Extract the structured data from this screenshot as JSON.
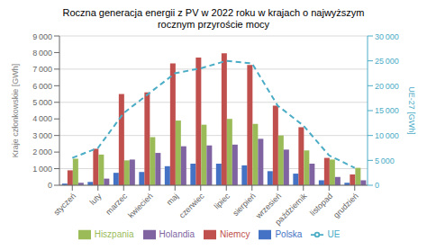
{
  "chart_data": {
    "type": "bar",
    "title": "Roczna generacja energii z PV w 2022 roku w krajach o najwyższym\nrocznym przyroście mocy",
    "categories": [
      "styczeń",
      "luty",
      "marzec",
      "kwiecień",
      "maj",
      "czerwiec",
      "lipiec",
      "sierpień",
      "wrzesień",
      "październik",
      "listopad",
      "grudzień"
    ],
    "series": [
      {
        "name": "Polska",
        "color": "#4472c4",
        "values": [
          100,
          200,
          750,
          800,
          1150,
          1300,
          1300,
          1200,
          850,
          700,
          300,
          150
        ]
      },
      {
        "name": "Niemcy",
        "color": "#c0504d",
        "values": [
          900,
          2200,
          5500,
          5600,
          7350,
          7700,
          7950,
          7250,
          4800,
          3500,
          1650,
          650
        ]
      },
      {
        "name": "Hiszpania",
        "color": "#9bbb59",
        "values": [
          1600,
          1850,
          1500,
          2900,
          3900,
          3650,
          4000,
          3700,
          3000,
          2100,
          1550,
          1050
        ]
      },
      {
        "name": "Holandia",
        "color": "#8064a2",
        "values": [
          150,
          400,
          1550,
          1950,
          2350,
          2400,
          2450,
          2800,
          2150,
          1300,
          500,
          300
        ]
      },
      {
        "name": "UE",
        "color": "#4bacc6",
        "values": [
          5500,
          7500,
          14500,
          18500,
          22500,
          23500,
          25000,
          24500,
          16000,
          12000,
          6000,
          3500
        ],
        "axis": "y2",
        "type": "line",
        "line_style": "dashed"
      }
    ],
    "ylabel": "Kraje członkowskie [GWh]",
    "y2label": "UE-27 [GWh]",
    "ylim": [
      0,
      9000
    ],
    "yticks": [
      0,
      {
        "value": 1000,
        "label": "1 000"
      },
      {
        "value": 2000,
        "label": "2 000"
      },
      {
        "value": 3000,
        "label": "3 000"
      },
      {
        "value": 4000,
        "label": "4 000"
      },
      {
        "value": 5000,
        "label": "5 000"
      },
      {
        "value": 6000,
        "label": "6 000"
      },
      {
        "value": 7000,
        "label": "7 000"
      },
      {
        "value": 8000,
        "label": "8 000"
      },
      {
        "value": 9000,
        "label": "9 000"
      }
    ],
    "y2lim": [
      0,
      30000
    ],
    "y2ticks": [
      0,
      {
        "value": 5000,
        "label": "5 000"
      },
      {
        "value": 10000,
        "label": "10 000"
      },
      {
        "value": 15000,
        "label": "15 000"
      },
      {
        "value": 20000,
        "label": "20 000"
      },
      {
        "value": 25000,
        "label": "25 000"
      },
      {
        "value": 30000,
        "label": "30 000"
      }
    ],
    "grid": true,
    "legend": "bottom"
  }
}
